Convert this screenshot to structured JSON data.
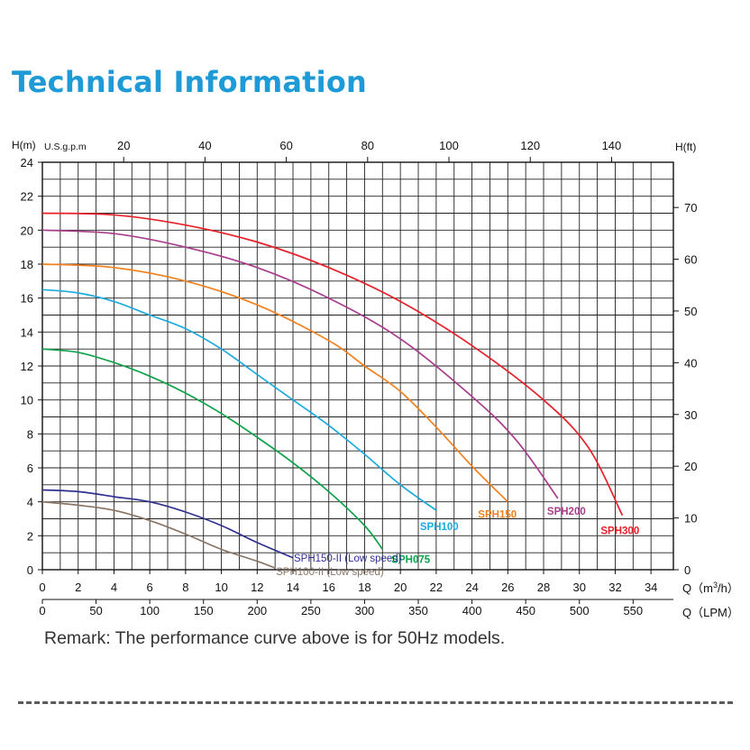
{
  "page": {
    "title": "Technical Information",
    "remark": "Remark: The performance curve above is for 50Hz models."
  },
  "chart_data": {
    "type": "line",
    "axes": {
      "left": {
        "label": "H(m)",
        "range": [
          0,
          24
        ],
        "ticks": [
          0,
          2,
          4,
          6,
          8,
          10,
          12,
          14,
          16,
          18,
          20,
          22,
          24
        ]
      },
      "right": {
        "label": "H(ft)",
        "range": [
          0,
          78.74
        ],
        "ticks": [
          0,
          10,
          20,
          30,
          40,
          50,
          60,
          70
        ]
      },
      "top": {
        "label": "U.S.g.p.m",
        "range": [
          0,
          155.2
        ],
        "ticks": [
          20,
          40,
          60,
          80,
          100,
          120,
          140
        ]
      },
      "bottom": {
        "label": "Q（m³/h）",
        "label_prefix": "Q（m",
        "label_sup": "3",
        "label_suffix": "/h）",
        "range": [
          0,
          35.25
        ],
        "ticks": [
          0,
          2,
          4,
          6,
          8,
          10,
          12,
          14,
          16,
          18,
          20,
          22,
          24,
          26,
          28,
          30,
          32,
          34
        ]
      },
      "bottom2": {
        "label": "Q（LPM）",
        "range": [
          0,
          587.5
        ],
        "ticks": [
          0,
          50,
          100,
          150,
          200,
          250,
          300,
          350,
          400,
          450,
          500,
          550
        ]
      }
    },
    "grid": true,
    "series": [
      {
        "name": "SPH300",
        "color": "#e8202a",
        "points": [
          [
            0,
            21
          ],
          [
            4,
            20.9
          ],
          [
            8,
            20.3
          ],
          [
            12,
            19.3
          ],
          [
            16,
            17.8
          ],
          [
            20,
            15.8
          ],
          [
            24,
            13.2
          ],
          [
            28,
            10
          ],
          [
            30.5,
            7.2
          ],
          [
            32.4,
            3.2
          ]
        ]
      },
      {
        "name": "SPH200",
        "color": "#a83d8c",
        "points": [
          [
            0,
            20
          ],
          [
            4,
            19.8
          ],
          [
            8,
            19
          ],
          [
            12,
            17.8
          ],
          [
            16,
            16
          ],
          [
            20,
            13.6
          ],
          [
            24,
            10.2
          ],
          [
            26.5,
            7.6
          ],
          [
            28.8,
            4.2
          ]
        ]
      },
      {
        "name": "SPH150",
        "color": "#f2811f",
        "points": [
          [
            0,
            18
          ],
          [
            4,
            17.8
          ],
          [
            8,
            17
          ],
          [
            12,
            15.6
          ],
          [
            16,
            13.5
          ],
          [
            18,
            12
          ],
          [
            20,
            10.5
          ],
          [
            22,
            8.4
          ],
          [
            24,
            6.1
          ],
          [
            26,
            4
          ]
        ]
      },
      {
        "name": "SPH100",
        "color": "#1eaadf",
        "points": [
          [
            0,
            16.5
          ],
          [
            2,
            16.3
          ],
          [
            4,
            15.8
          ],
          [
            6,
            15
          ],
          [
            8,
            14.2
          ],
          [
            10,
            13
          ],
          [
            12,
            11.5
          ],
          [
            14,
            10
          ],
          [
            16,
            8.5
          ],
          [
            18,
            6.8
          ],
          [
            20,
            5
          ],
          [
            22,
            3.5
          ]
        ]
      },
      {
        "name": "SPH075",
        "color": "#0da24a",
        "points": [
          [
            0,
            13
          ],
          [
            2,
            12.8
          ],
          [
            4,
            12.2
          ],
          [
            6,
            11.4
          ],
          [
            8,
            10.4
          ],
          [
            10,
            9.2
          ],
          [
            12,
            7.8
          ],
          [
            14,
            6.3
          ],
          [
            16,
            4.6
          ],
          [
            18,
            2.6
          ],
          [
            19,
            1.2
          ]
        ]
      },
      {
        "name": "SPH150-II (Low speed)",
        "color": "#2e2f8f",
        "points": [
          [
            0,
            4.7
          ],
          [
            2,
            4.6
          ],
          [
            4,
            4.3
          ],
          [
            6,
            4
          ],
          [
            8,
            3.4
          ],
          [
            10,
            2.6
          ],
          [
            12,
            1.6
          ],
          [
            14,
            0.7
          ]
        ]
      },
      {
        "name": "SPH100-II (Low speed)",
        "color": "#8a7565",
        "points": [
          [
            0,
            4
          ],
          [
            2,
            3.8
          ],
          [
            4,
            3.5
          ],
          [
            6,
            2.9
          ],
          [
            8,
            2.1
          ],
          [
            10,
            1.2
          ],
          [
            12,
            0.5
          ],
          [
            13,
            0.1
          ]
        ]
      }
    ]
  }
}
